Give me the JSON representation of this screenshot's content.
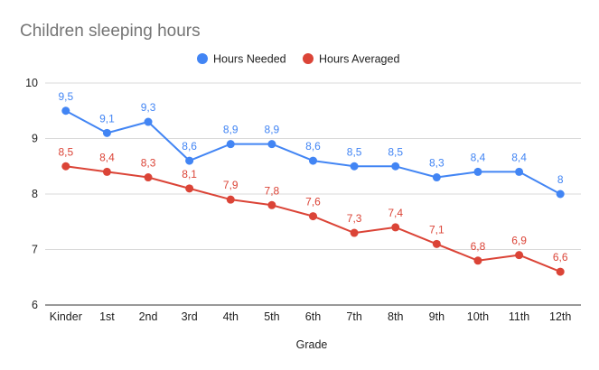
{
  "chart_data": {
    "type": "line",
    "title": "Children sleeping hours",
    "xlabel": "Grade",
    "ylabel": "",
    "ylim": [
      6,
      10
    ],
    "yticks": [
      "6",
      "7",
      "8",
      "9",
      "10"
    ],
    "grid": true,
    "legend_position": "top",
    "categories": [
      "Kinder",
      "1st",
      "2nd",
      "3rd",
      "4th",
      "5th",
      "6th",
      "7th",
      "8th",
      "9th",
      "10th",
      "11th",
      "12th"
    ],
    "series": [
      {
        "name": "Hours Needed",
        "color": "#4285f4",
        "values": [
          9.5,
          9.1,
          9.3,
          8.6,
          8.9,
          8.9,
          8.6,
          8.5,
          8.5,
          8.3,
          8.4,
          8.4,
          8.0
        ],
        "labels": [
          "9,5",
          "9,1",
          "9,3",
          "8,6",
          "8,9",
          "8,9",
          "8,6",
          "8,5",
          "8,5",
          "8,3",
          "8,4",
          "8,4",
          "8"
        ]
      },
      {
        "name": "Hours Averaged",
        "color": "#db4437",
        "values": [
          8.5,
          8.4,
          8.3,
          8.1,
          7.9,
          7.8,
          7.6,
          7.3,
          7.4,
          7.1,
          6.8,
          6.9,
          6.6
        ],
        "labels": [
          "8,5",
          "8,4",
          "8,3",
          "8,1",
          "7,9",
          "7,8",
          "7,6",
          "7,3",
          "7,4",
          "7,1",
          "6,8",
          "6,9",
          "6,6"
        ]
      }
    ]
  }
}
